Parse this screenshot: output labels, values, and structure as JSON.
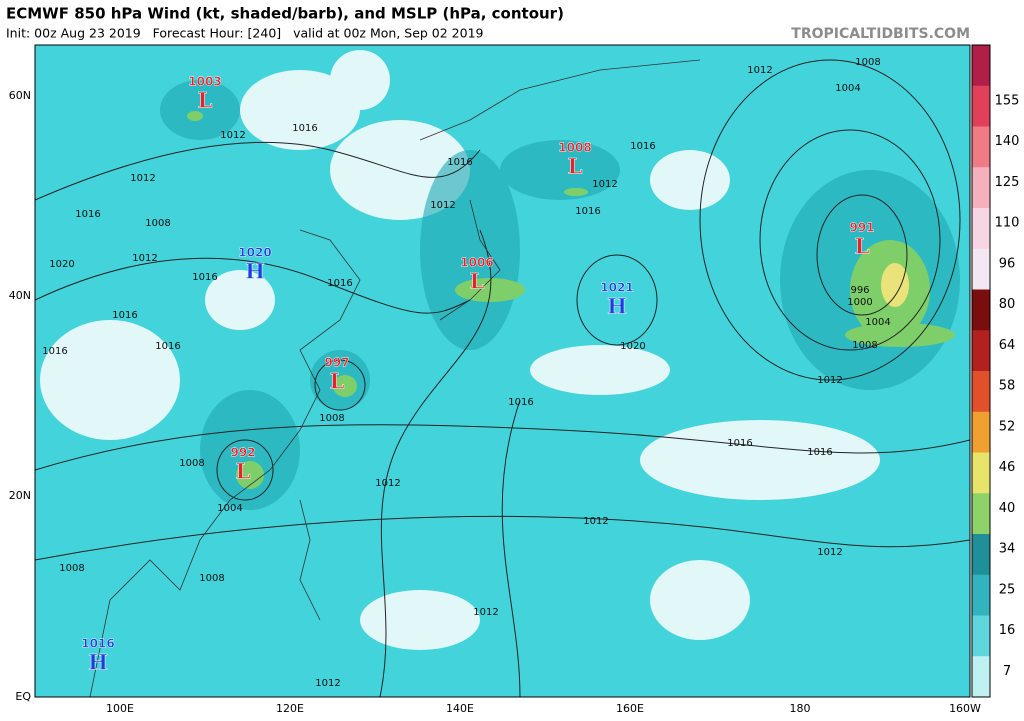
{
  "header": {
    "title": "ECMWF 850 hPa Wind (kt, shaded/barb), and MSLP (hPa, contour)",
    "subtitle": "Init: 00z Aug 23 2019   Forecast Hour: [240]   valid at 00z Mon, Sep 02 2019",
    "watermark": "TROPICALTIDBITS.COM"
  },
  "axes": {
    "lat_labels": [
      "60N",
      "40N",
      "20N",
      "EQ"
    ],
    "lon_labels": [
      "100E",
      "120E",
      "140E",
      "160E",
      "180",
      "160W"
    ]
  },
  "colorbar": {
    "labels": [
      155,
      140,
      125,
      110,
      96,
      80,
      64,
      58,
      52,
      46,
      40,
      34,
      25,
      16,
      7
    ]
  },
  "centers": [
    {
      "letter": "L",
      "value": 1003
    },
    {
      "letter": "L",
      "value": 1008
    },
    {
      "letter": "L",
      "value": 1006
    },
    {
      "letter": "L",
      "value": 991
    },
    {
      "letter": "L",
      "value": 997
    },
    {
      "letter": "L",
      "value": 992
    },
    {
      "letter": "H",
      "value": 1020
    },
    {
      "letter": "H",
      "value": 1021
    },
    {
      "letter": "H",
      "value": 1016
    }
  ],
  "isobar_labels": [
    1012,
    1016,
    1012,
    1016,
    1008,
    1012,
    1020,
    1016,
    1016,
    1016,
    1016,
    1016,
    1016,
    1012,
    1012,
    1016,
    1016,
    1012,
    1008,
    1004,
    996,
    1000,
    1004,
    1008,
    1012,
    1020,
    1016,
    1016,
    1016,
    1012,
    1012,
    1008,
    1008,
    1004,
    1012,
    1008,
    1008,
    1012,
    1012
  ]
}
